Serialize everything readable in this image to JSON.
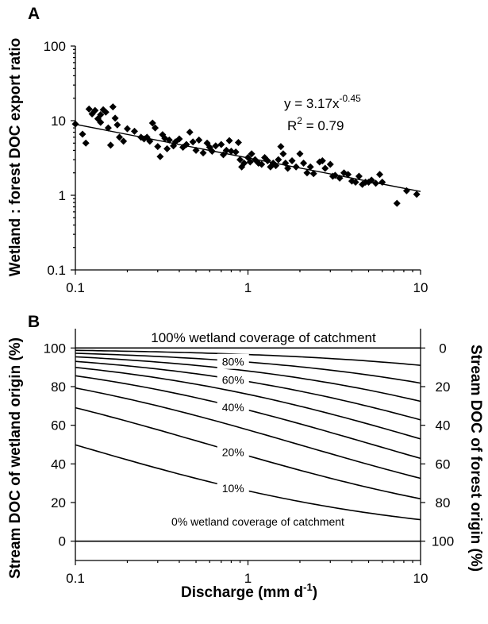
{
  "chart_data": [
    {
      "panel": "A",
      "type": "scatter",
      "xscale": "log",
      "yscale": "log",
      "xlim": [
        0.1,
        10
      ],
      "ylim": [
        0.1,
        100
      ],
      "xticks": [
        "0.1",
        "1",
        "10"
      ],
      "yticks": [
        "0.1",
        "1",
        "10",
        "100"
      ],
      "ylabel": "Wetland : forest DOC export ratio",
      "equation": {
        "base": "y = 3.17x",
        "exponent": "-0.45"
      },
      "r2": {
        "prefix": "R",
        "sup": "2",
        "suffix": " = 0.79"
      },
      "fit": {
        "a": 3.17,
        "b": -0.45
      },
      "points": [
        [
          0.1,
          9.0
        ],
        [
          0.11,
          6.6
        ],
        [
          0.115,
          5.0
        ],
        [
          0.12,
          14.3
        ],
        [
          0.125,
          12.3
        ],
        [
          0.13,
          13.7
        ],
        [
          0.135,
          10.6
        ],
        [
          0.14,
          12.0
        ],
        [
          0.14,
          9.5
        ],
        [
          0.145,
          14.0
        ],
        [
          0.15,
          13.0
        ],
        [
          0.155,
          8.0
        ],
        [
          0.16,
          4.7
        ],
        [
          0.165,
          15.3
        ],
        [
          0.17,
          10.8
        ],
        [
          0.175,
          8.8
        ],
        [
          0.18,
          6.0
        ],
        [
          0.19,
          5.3
        ],
        [
          0.2,
          7.8
        ],
        [
          0.22,
          7.2
        ],
        [
          0.24,
          6.0
        ],
        [
          0.25,
          5.7
        ],
        [
          0.26,
          6.0
        ],
        [
          0.27,
          5.3
        ],
        [
          0.28,
          9.3
        ],
        [
          0.29,
          8.0
        ],
        [
          0.3,
          4.5
        ],
        [
          0.31,
          3.3
        ],
        [
          0.32,
          6.5
        ],
        [
          0.33,
          5.8
        ],
        [
          0.34,
          4.2
        ],
        [
          0.35,
          5.5
        ],
        [
          0.37,
          4.6
        ],
        [
          0.38,
          5.2
        ],
        [
          0.4,
          5.7
        ],
        [
          0.42,
          4.4
        ],
        [
          0.44,
          4.8
        ],
        [
          0.46,
          7.0
        ],
        [
          0.48,
          5.2
        ],
        [
          0.5,
          4.0
        ],
        [
          0.52,
          5.5
        ],
        [
          0.55,
          3.7
        ],
        [
          0.58,
          5.0
        ],
        [
          0.6,
          4.4
        ],
        [
          0.62,
          3.9
        ],
        [
          0.65,
          4.6
        ],
        [
          0.7,
          4.8
        ],
        [
          0.72,
          3.5
        ],
        [
          0.75,
          4.0
        ],
        [
          0.78,
          5.4
        ],
        [
          0.8,
          3.9
        ],
        [
          0.85,
          3.8
        ],
        [
          0.88,
          5.1
        ],
        [
          0.9,
          3.0
        ],
        [
          0.92,
          2.4
        ],
        [
          0.95,
          2.7
        ],
        [
          1.0,
          3.2
        ],
        [
          1.03,
          2.8
        ],
        [
          1.05,
          3.6
        ],
        [
          1.1,
          3.0
        ],
        [
          1.15,
          2.7
        ],
        [
          1.2,
          2.6
        ],
        [
          1.25,
          3.2
        ],
        [
          1.3,
          2.9
        ],
        [
          1.35,
          2.4
        ],
        [
          1.4,
          2.7
        ],
        [
          1.45,
          2.5
        ],
        [
          1.5,
          3.0
        ],
        [
          1.55,
          4.5
        ],
        [
          1.6,
          3.6
        ],
        [
          1.65,
          2.7
        ],
        [
          1.7,
          2.3
        ],
        [
          1.8,
          2.9
        ],
        [
          1.9,
          2.4
        ],
        [
          2.0,
          3.6
        ],
        [
          2.1,
          2.7
        ],
        [
          2.2,
          2.0
        ],
        [
          2.3,
          2.4
        ],
        [
          2.4,
          1.95
        ],
        [
          2.6,
          2.8
        ],
        [
          2.7,
          2.9
        ],
        [
          2.8,
          2.3
        ],
        [
          3.0,
          2.6
        ],
        [
          3.1,
          1.8
        ],
        [
          3.2,
          1.85
        ],
        [
          3.4,
          1.7
        ],
        [
          3.6,
          2.0
        ],
        [
          3.8,
          1.9
        ],
        [
          4.0,
          1.55
        ],
        [
          4.2,
          1.5
        ],
        [
          4.4,
          1.8
        ],
        [
          4.6,
          1.4
        ],
        [
          4.8,
          1.5
        ],
        [
          5.0,
          1.5
        ],
        [
          5.2,
          1.6
        ],
        [
          5.5,
          1.45
        ],
        [
          5.8,
          1.9
        ],
        [
          6.0,
          1.5
        ],
        [
          7.3,
          0.78
        ],
        [
          8.3,
          1.15
        ],
        [
          9.5,
          1.03
        ]
      ]
    },
    {
      "panel": "B",
      "type": "line",
      "xscale": "log",
      "xlim": [
        0.1,
        10
      ],
      "ylim": [
        -10,
        110
      ],
      "xticks": [
        "0.1",
        "1",
        "10"
      ],
      "yticks": [
        "0",
        "20",
        "40",
        "60",
        "80",
        "100"
      ],
      "y2ticks": [
        "100",
        "80",
        "60",
        "40",
        "20",
        "0"
      ],
      "xlabel": {
        "prefix": "Discharge (mm d",
        "sup": "-1",
        "suffix": ")"
      },
      "ylabel": "Stream DOC of wetland origin (%)",
      "y2label": "Stream DOC of forest origin (%)",
      "top_label": "100% wetland coverage of catchment",
      "bottom_label": "0% wetland coverage of catchment",
      "coverages": [
        10,
        20,
        30,
        40,
        50,
        60,
        70,
        80,
        90
      ],
      "curve_labels": [
        {
          "text": "10%",
          "x": 0.82,
          "coverage": 10
        },
        {
          "text": "20%",
          "x": 0.82,
          "coverage": 20
        },
        {
          "text": "40%",
          "x": 0.82,
          "coverage": 40
        },
        {
          "text": "60%",
          "x": 0.82,
          "coverage": 60
        },
        {
          "text": "80%",
          "x": 0.82,
          "coverage": 80
        }
      ]
    }
  ]
}
